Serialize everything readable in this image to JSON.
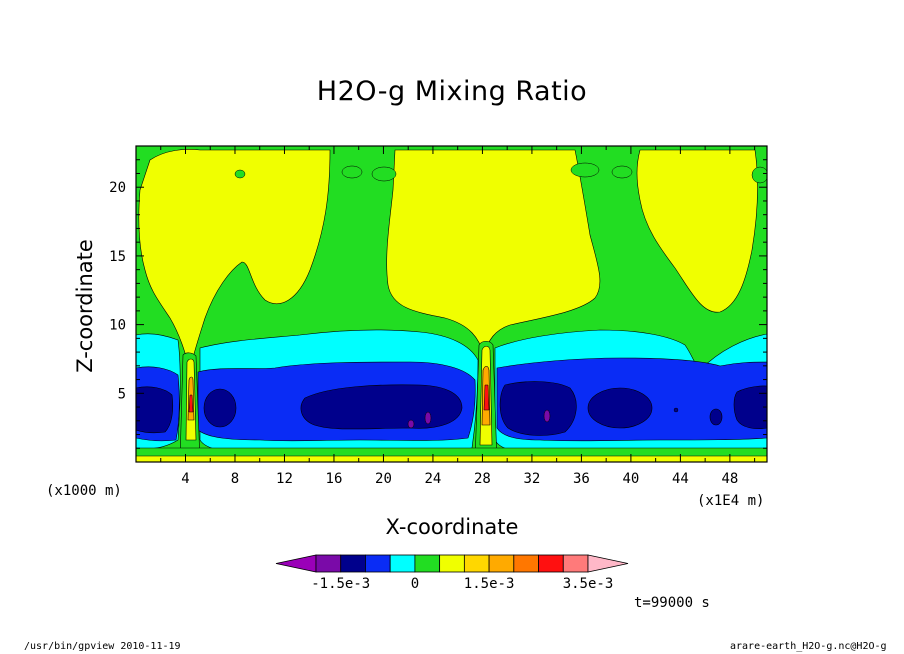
{
  "chart_data": {
    "type": "heatmap",
    "title": "H2O-g Mixing Ratio",
    "xlabel": "X-coordinate",
    "ylabel": "Z-coordinate",
    "x_unit_label": "(x1000 m)",
    "x_scale_label": "(x1E4 m)",
    "xlim": [
      0,
      51
    ],
    "ylim": [
      0,
      23
    ],
    "x_ticks": [
      4,
      8,
      12,
      16,
      20,
      24,
      28,
      32,
      36,
      40,
      44,
      48
    ],
    "y_ticks": [
      5,
      10,
      15,
      20
    ],
    "colorbar": {
      "levels": [
        "-2.5e-3",
        "-2e-3",
        "-1.5e-3",
        "-1e-3",
        "-5e-4",
        "0",
        "5e-4",
        "1e-3",
        "1.5e-3",
        "2e-3",
        "2.5e-3",
        "3e-3",
        "3.5e-3"
      ],
      "labels": [
        "-1.5e-3",
        "0",
        "1.5e-3",
        "3.5e-3"
      ],
      "colors": [
        "#9a00b8",
        "#7a0aa8",
        "#00008c",
        "#0a2cf5",
        "#00ffff",
        "#22dd22",
        "#f0ff00",
        "#ffd700",
        "#ffaa00",
        "#ff7700",
        "#ff1010",
        "#ff7a7a",
        "#ffb8c8"
      ],
      "extend": "both"
    },
    "regions": [
      {
        "level": "0",
        "color": "#22dd22",
        "description": "background"
      },
      {
        "level": "5e-4",
        "color": "#f0ff00"
      },
      {
        "level": "-5e-4",
        "color": "#00ffff"
      },
      {
        "level": "-1e-3",
        "color": "#0a2cf5"
      },
      {
        "level": "-1.5e-3",
        "color": "#00008c"
      },
      {
        "level": "-2e-3",
        "color": "#7a0aa8"
      }
    ]
  },
  "annotations": {
    "time": "t=99000 s"
  },
  "footer": {
    "left": "/usr/bin/gpview   2010-11-19",
    "right": "arare-earth_H2O-g.nc@H2O-g"
  }
}
